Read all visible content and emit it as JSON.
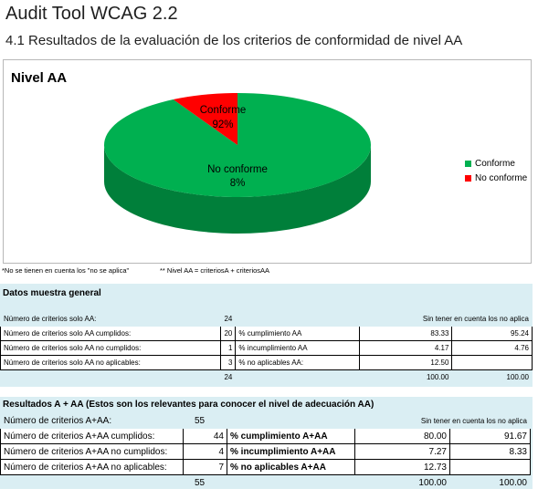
{
  "header": {
    "title": "Audit Tool WCAG 2.2",
    "subtitle": "4.1 Resultados de la evaluación de los criterios de conformidad de nivel AA"
  },
  "chart_data": {
    "type": "pie",
    "title": "Nivel AA",
    "slices": [
      {
        "label": "Conforme",
        "value": 92,
        "value_label": "92%",
        "color": "#00b050"
      },
      {
        "label": "No conforme",
        "value": 8,
        "value_label": "8%",
        "color": "#ff0000"
      }
    ],
    "legend": {
      "position": "right",
      "entries": [
        "Conforme",
        "No conforme"
      ]
    }
  },
  "notes": {
    "left": "*No se tienen en cuenta los \"no se aplica\"",
    "right": "** Nivel AA = criteriosA + criteriosAA"
  },
  "general": {
    "title": "Datos muestra general",
    "extra_header": "Sin tener en cuenta los no aplica",
    "rows": [
      {
        "label": "Número de criterios solo AA:",
        "count": "24",
        "metric": "",
        "pct": "",
        "alt": ""
      },
      {
        "label": "Número de criterios solo AA cumplidos:",
        "count": "20",
        "metric": "% cumplimiento AA",
        "pct": "83.33",
        "alt": "95.24"
      },
      {
        "label": "Número de criterios solo AA no cumplidos:",
        "count": "1",
        "metric": "% incumplimiento AA",
        "pct": "4.17",
        "alt": "4.76"
      },
      {
        "label": "Número de criterios solo AA no aplicables:",
        "count": "3",
        "metric": "% no aplicables AA:",
        "pct": "12.50",
        "alt": ""
      },
      {
        "label": "",
        "count": "24",
        "metric": "",
        "pct": "100.00",
        "alt": "100.00"
      }
    ]
  },
  "combined": {
    "title": "Resultados A + AA (Estos son los relevantes para conocer el nivel de adecuación AA)",
    "extra_header": "Sin tener en cuenta los no aplica",
    "rows": [
      {
        "label": "Número de criterios A+AA:",
        "count": "55",
        "metric": "",
        "pct": "",
        "alt": ""
      },
      {
        "label": "Número de criterios A+AA cumplidos:",
        "count": "44",
        "metric": "% cumplimiento A+AA",
        "pct": "80.00",
        "alt": "91.67"
      },
      {
        "label": "Número de criterios A+AA no cumplidos:",
        "count": "4",
        "metric": "% incumplimiento A+AA",
        "pct": "7.27",
        "alt": "8.33"
      },
      {
        "label": "Número de criterios A+AA no aplicables:",
        "count": "7",
        "metric": "% no aplicables A+AA",
        "pct": "12.73",
        "alt": ""
      },
      {
        "label": "",
        "count": "55",
        "metric": "",
        "pct": "100.00",
        "alt": "100.00"
      }
    ]
  }
}
